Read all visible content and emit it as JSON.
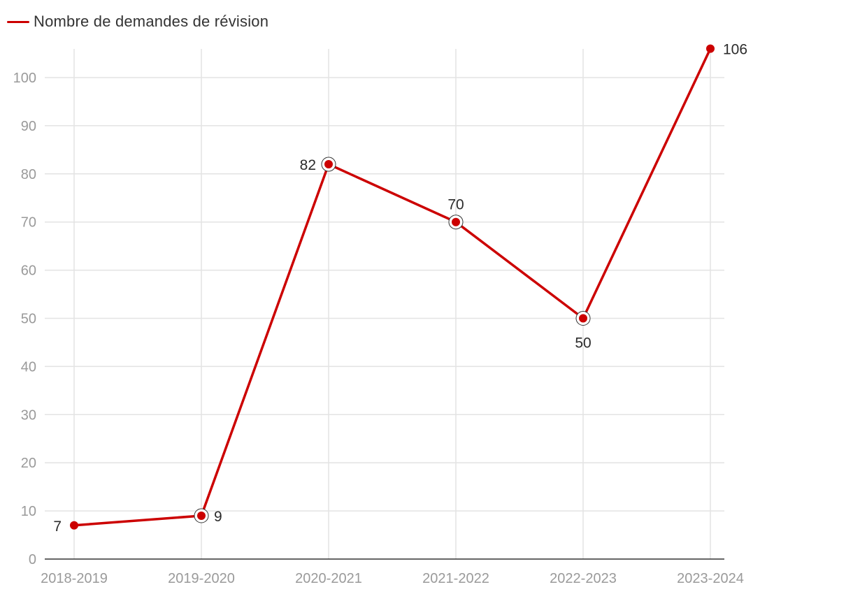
{
  "chart_data": {
    "type": "line",
    "title": "",
    "xlabel": "",
    "ylabel": "",
    "categories": [
      "2018-2019",
      "2019-2020",
      "2020-2021",
      "2021-2022",
      "2022-2023",
      "2023-2024"
    ],
    "series": [
      {
        "name": "Nombre de demandes de révision",
        "values": [
          7,
          9,
          82,
          70,
          50,
          106
        ],
        "color": "#cc0000",
        "label_placement": [
          "left",
          "right",
          "left",
          "above",
          "below",
          "right"
        ],
        "highlighted": [
          false,
          true,
          true,
          true,
          true,
          false
        ]
      }
    ],
    "ylim": [
      0,
      106
    ],
    "yticks": [
      0,
      10,
      20,
      30,
      40,
      50,
      60,
      70,
      80,
      90,
      100
    ],
    "grid": true,
    "legend_position": "top-left"
  },
  "colors": {
    "series": "#cc0000",
    "grid": "#e3e3e3",
    "axis": "#333333",
    "tick_text": "#9a9a9a",
    "label_text": "#2b2b2b"
  }
}
